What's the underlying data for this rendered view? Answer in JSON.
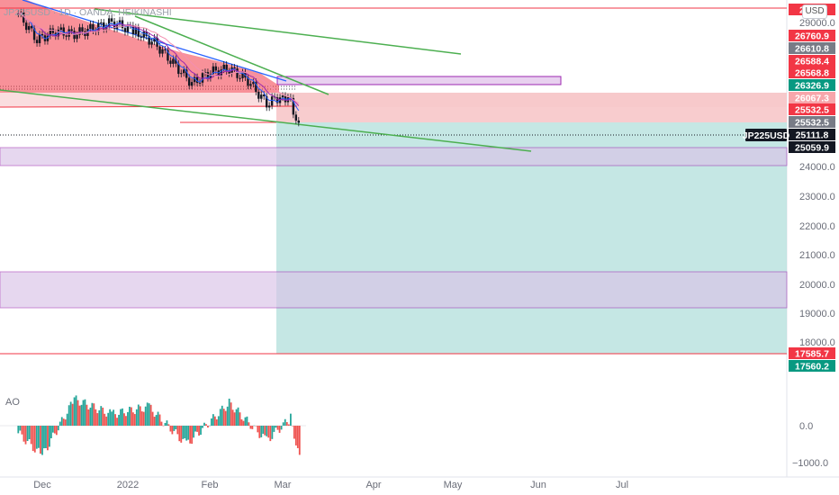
{
  "header": {
    "symbol_line": "JP225USD · 1D · OANDA, HEIKINASHI",
    "currency": "USD"
  },
  "price_axis": {
    "ticks": [
      "29000.0",
      "24000.0",
      "23000.0",
      "22000.0",
      "21000.0",
      "20000.0",
      "19000.0",
      "18000.0"
    ]
  },
  "price_tags": [
    {
      "label": "29…4",
      "color": "#f23645"
    },
    {
      "label": "26760.9",
      "color": "#f23645"
    },
    {
      "label": "26610.8",
      "color": "#787b86"
    },
    {
      "label": "26588.4",
      "color": "#f23645"
    },
    {
      "label": "26568.8",
      "color": "#f23645"
    },
    {
      "label": "26326.9",
      "color": "#089981"
    },
    {
      "label": "26067.3",
      "color": "#f7a6ab"
    },
    {
      "label": "25532.5",
      "color": "#f23645"
    },
    {
      "label": "25532.5",
      "color": "#787b86"
    },
    {
      "label": "25111.8",
      "color": "#131722"
    },
    {
      "label": "25059.9",
      "color": "#131722"
    },
    {
      "label": "17585.7",
      "color": "#f23645"
    },
    {
      "label": "17560.2",
      "color": "#089981"
    }
  ],
  "symbol_tag": "JP225USD",
  "time_axis": [
    "Dec",
    "2022",
    "Feb",
    "Mar",
    "Apr",
    "May",
    "Jun",
    "Jul"
  ],
  "indicator": {
    "name": "AO",
    "ticks": [
      "0.0",
      "−1000.0"
    ]
  },
  "chart_data": {
    "type": "candlestick",
    "title": "",
    "ylim": [
      17400,
      29300
    ],
    "candles_sampled": [
      {
        "date": "2021-11-22",
        "value": 29300
      },
      {
        "date": "2021-11-29",
        "value": 28400
      },
      {
        "date": "2021-12-06",
        "value": 28700
      },
      {
        "date": "2021-12-13",
        "value": 28600
      },
      {
        "date": "2021-12-20",
        "value": 28800
      },
      {
        "date": "2021-12-27",
        "value": 29000
      },
      {
        "date": "2022-01-05",
        "value": 28700
      },
      {
        "date": "2022-01-12",
        "value": 28300
      },
      {
        "date": "2022-01-19",
        "value": 27600
      },
      {
        "date": "2022-01-26",
        "value": 26900
      },
      {
        "date": "2022-02-02",
        "value": 27300
      },
      {
        "date": "2022-02-09",
        "value": 27400
      },
      {
        "date": "2022-02-16",
        "value": 27000
      },
      {
        "date": "2022-02-23",
        "value": 26200
      },
      {
        "date": "2022-03-01",
        "value": 26500
      },
      {
        "date": "2022-03-04",
        "value": 26300
      },
      {
        "date": "2022-03-08",
        "value": 25060
      }
    ],
    "ao_sampled": [
      {
        "date": "2021-11-22",
        "value": -200
      },
      {
        "date": "2021-12-01",
        "value": -800
      },
      {
        "date": "2021-12-13",
        "value": 700
      },
      {
        "date": "2021-12-27",
        "value": 300
      },
      {
        "date": "2022-01-10",
        "value": 500
      },
      {
        "date": "2022-01-24",
        "value": -500
      },
      {
        "date": "2022-02-09",
        "value": 600
      },
      {
        "date": "2022-02-23",
        "value": -400
      },
      {
        "date": "2022-03-04",
        "value": 200
      },
      {
        "date": "2022-03-08",
        "value": -1100
      }
    ],
    "horizontal_levels": [
      29300,
      26760.9,
      26326.9,
      26067.3,
      25532.5,
      25111.8,
      25059.9,
      24000,
      20400,
      19200,
      17585.7,
      17560.2
    ],
    "zones": [
      {
        "kind": "short-risk",
        "from": 25532.5,
        "to": 26067.3
      },
      {
        "kind": "long-target",
        "from": 17560.2,
        "to": 25532.5
      },
      {
        "kind": "demand",
        "from": 24050,
        "to": 24650
      },
      {
        "kind": "demand",
        "from": 19200,
        "to": 20400
      }
    ]
  }
}
